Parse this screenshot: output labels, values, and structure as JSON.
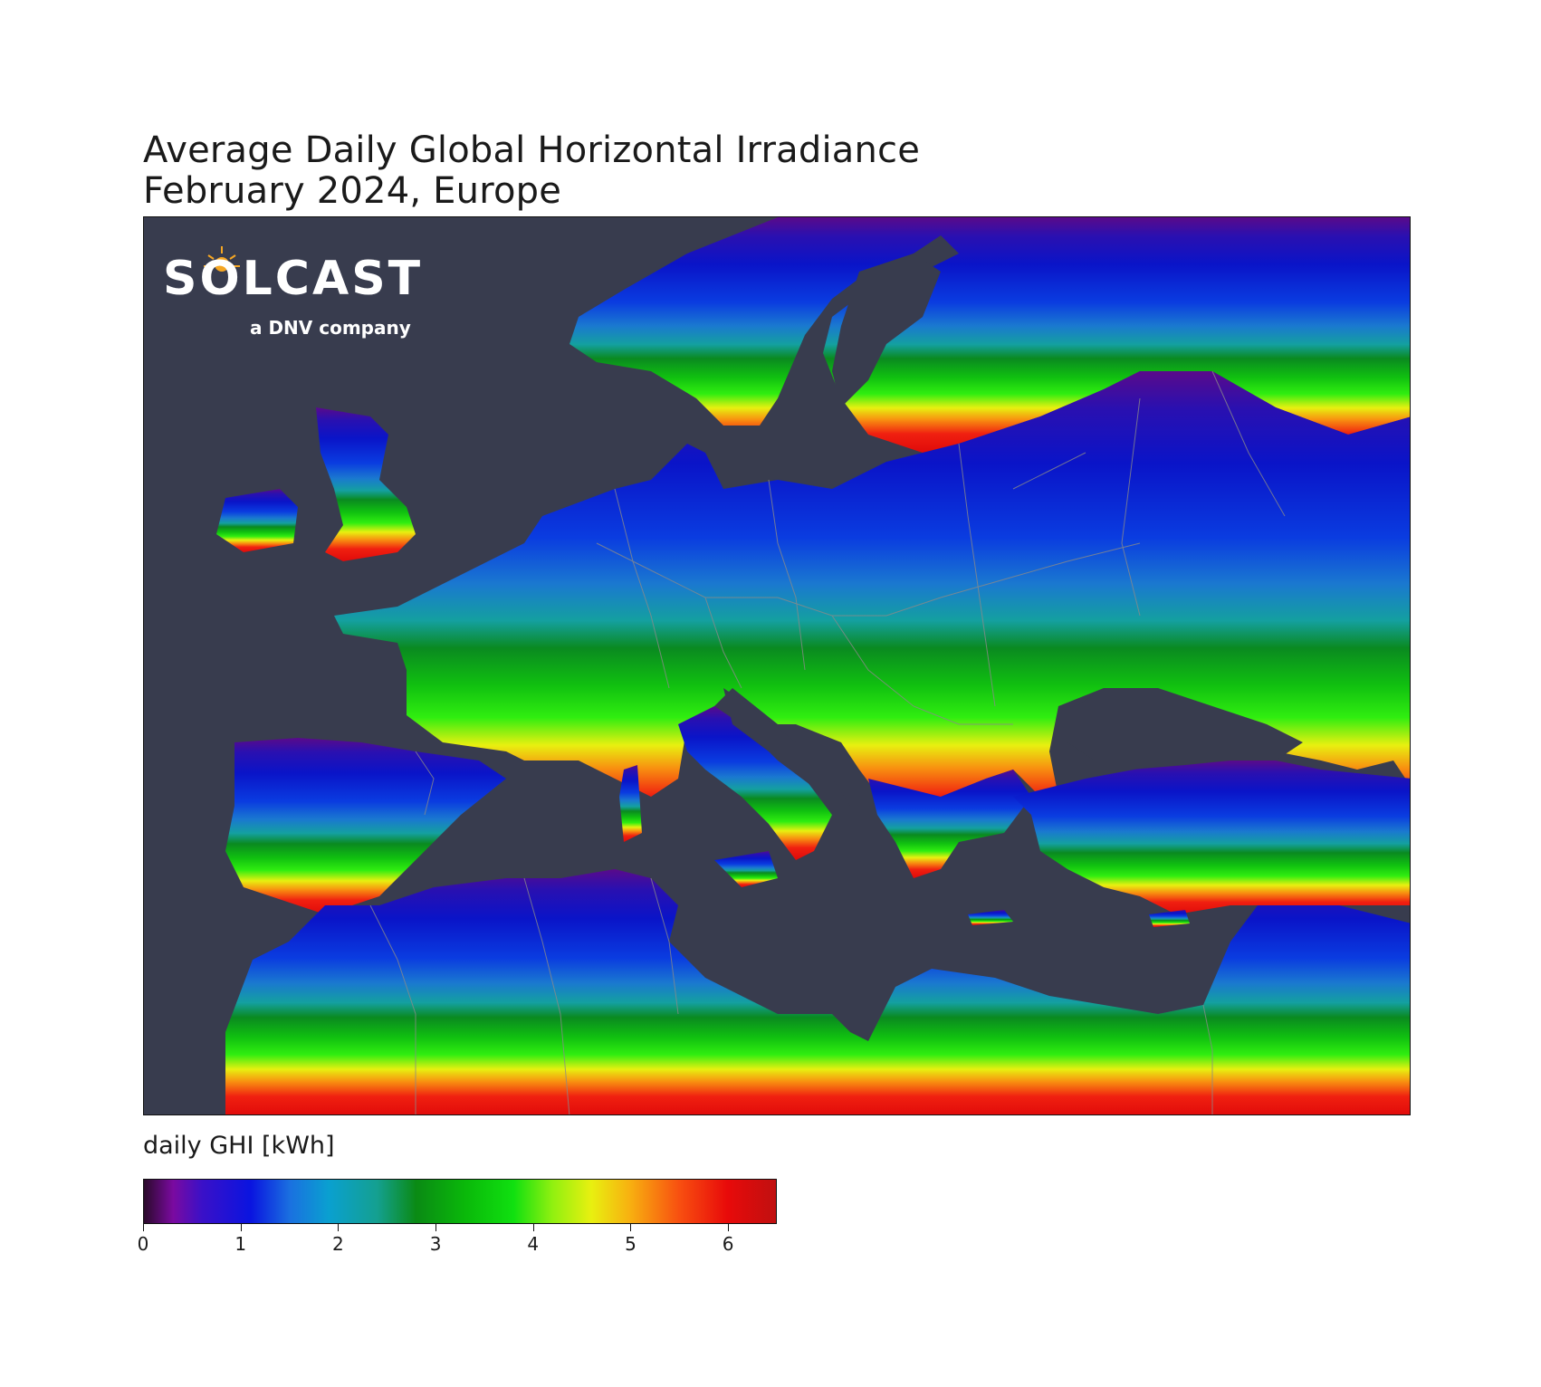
{
  "title": {
    "line1": "Average Daily Global Horizontal Irradiance",
    "line2": "February 2024, Europe"
  },
  "logo": {
    "wordmark": "SOLCAST",
    "tagline": "a DNV company"
  },
  "colorbar": {
    "label": "daily GHI [kWh]",
    "min": 0,
    "max": 6.5,
    "ticks": [
      "0",
      "1",
      "2",
      "3",
      "4",
      "5",
      "6"
    ],
    "stops": [
      {
        "value": 0.0,
        "color": "#2a0a2a"
      },
      {
        "value": 0.3,
        "color": "#7a0aa0"
      },
      {
        "value": 0.6,
        "color": "#3a10c8"
      },
      {
        "value": 1.1,
        "color": "#0a14e0"
      },
      {
        "value": 1.5,
        "color": "#1a70e0"
      },
      {
        "value": 1.9,
        "color": "#0aa0d0"
      },
      {
        "value": 2.4,
        "color": "#14a090"
      },
      {
        "value": 2.8,
        "color": "#0a8a14"
      },
      {
        "value": 3.3,
        "color": "#0ab80a"
      },
      {
        "value": 3.8,
        "color": "#10e010"
      },
      {
        "value": 4.2,
        "color": "#90f010"
      },
      {
        "value": 4.6,
        "color": "#e8f010"
      },
      {
        "value": 5.0,
        "color": "#f8b010"
      },
      {
        "value": 5.5,
        "color": "#f85010"
      },
      {
        "value": 6.0,
        "color": "#e80a0a"
      },
      {
        "value": 6.5,
        "color": "#c01010"
      }
    ]
  },
  "map": {
    "ocean_color": "#383c4e",
    "border_color": "#8a8a8a"
  }
}
